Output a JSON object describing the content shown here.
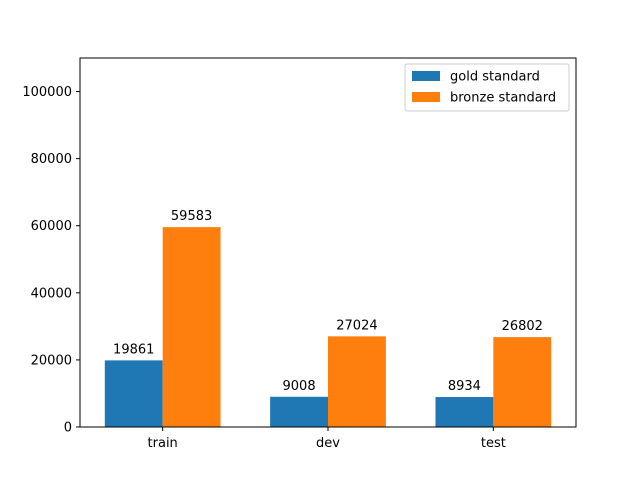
{
  "chart_data": {
    "type": "bar",
    "title": "",
    "xlabel": "",
    "ylabel": "",
    "categories": [
      "train",
      "dev",
      "test"
    ],
    "series": [
      {
        "name": "gold standard",
        "values": [
          19861,
          9008,
          8934
        ],
        "color": "#1f77b4"
      },
      {
        "name": "bronze standard",
        "values": [
          59583,
          27024,
          26802
        ],
        "color": "#ff7f0e"
      }
    ],
    "ylim": [
      0,
      110000
    ],
    "yticks": [
      0,
      20000,
      40000,
      60000,
      80000,
      100000
    ],
    "ytick_labels": [
      "0",
      "20000",
      "40000",
      "60000",
      "80000",
      "100000"
    ],
    "data_labels": [
      [
        "19861",
        "9008",
        "8934"
      ],
      [
        "59583",
        "27024",
        "26802"
      ]
    ],
    "grid": false,
    "legend": "upper right"
  }
}
